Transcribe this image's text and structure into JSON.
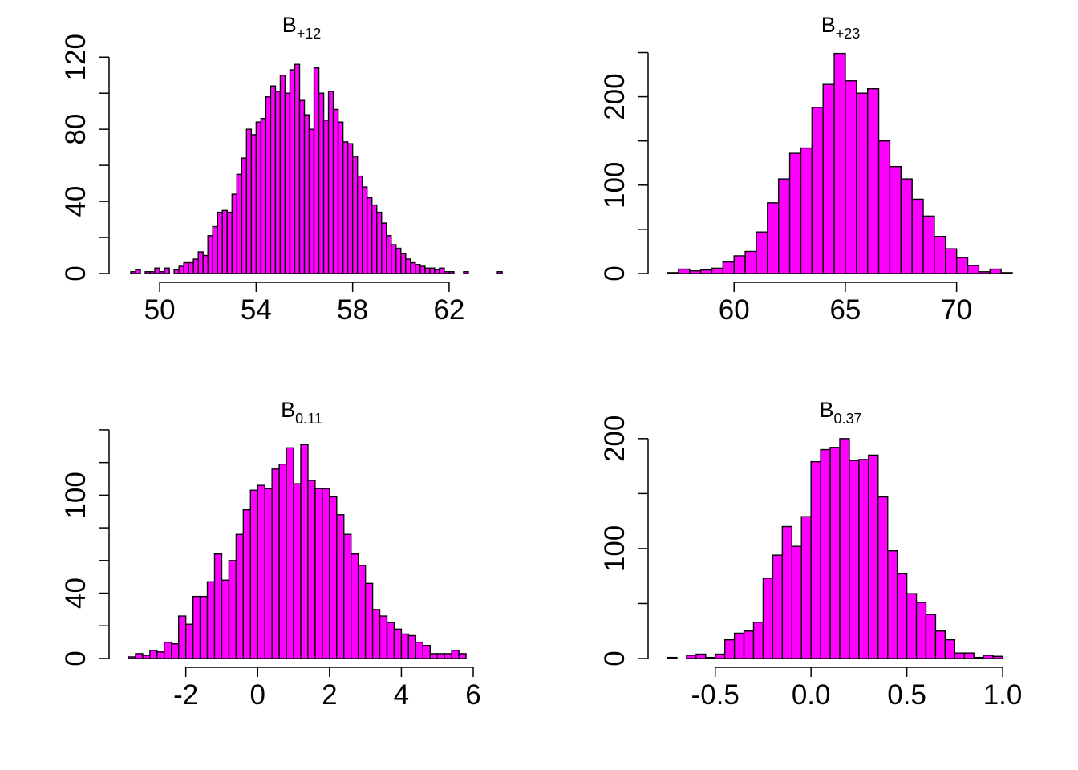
{
  "colors": {
    "bar_fill": "#ff00ff",
    "bar_stroke": "#000000",
    "background": "#ffffff"
  },
  "chart_data": [
    {
      "type": "bar",
      "title": {
        "main": "B",
        "sub": "+12"
      },
      "xlabel": "",
      "ylabel": "",
      "xlim": [
        48.7,
        63.0
      ],
      "ylim": [
        0,
        125
      ],
      "xticks": [
        50,
        54,
        58,
        62
      ],
      "xtick_labels": [
        "50",
        "54",
        "58",
        "62"
      ],
      "yticks": [
        0,
        20,
        40,
        60,
        80,
        100,
        120
      ],
      "ytick_labels": [
        "0",
        "",
        "40",
        "",
        "80",
        "",
        "120"
      ],
      "grid": false,
      "bin_start": 48.8,
      "bin_width": 0.2,
      "values": [
        1,
        2,
        0,
        1,
        1,
        3,
        1,
        3,
        0,
        2,
        4,
        6,
        6,
        8,
        12,
        10,
        21,
        26,
        34,
        35,
        34,
        44,
        55,
        64,
        80,
        77,
        84,
        86,
        98,
        104,
        101,
        110,
        100,
        113,
        116,
        96,
        88,
        80,
        114,
        100,
        85,
        101,
        91,
        84,
        73,
        72,
        65,
        54,
        48,
        42,
        38,
        34,
        28,
        21,
        16,
        14,
        11,
        8,
        6,
        5,
        4,
        3,
        3,
        2,
        3,
        1,
        1,
        0,
        0,
        1,
        0,
        0,
        0,
        0,
        0,
        0,
        1
      ]
    },
    {
      "type": "bar",
      "title": {
        "main": "B",
        "sub": "+23"
      },
      "xlabel": "",
      "ylabel": "",
      "xlim": [
        57.0,
        72.5
      ],
      "ylim": [
        0,
        255
      ],
      "xticks": [
        60,
        65,
        70
      ],
      "xtick_labels": [
        "60",
        "65",
        "70"
      ],
      "yticks": [
        0,
        50,
        100,
        150,
        200,
        250
      ],
      "ytick_labels": [
        "0",
        "",
        "100",
        "",
        "200",
        ""
      ],
      "grid": false,
      "bin_start": 57.0,
      "bin_width": 0.5,
      "values": [
        1,
        5,
        3,
        4,
        6,
        13,
        20,
        25,
        47,
        80,
        107,
        136,
        142,
        188,
        214,
        249,
        218,
        204,
        209,
        150,
        121,
        107,
        84,
        65,
        42,
        28,
        18,
        9,
        2,
        5,
        1
      ]
    },
    {
      "type": "bar",
      "title": {
        "main": "B",
        "sub": "0.11"
      },
      "xlabel": "",
      "ylabel": "",
      "xlim": [
        -3.6,
        6.0
      ],
      "ylim": [
        0,
        138
      ],
      "xticks": [
        -2,
        0,
        2,
        4,
        6
      ],
      "xtick_labels": [
        "-2",
        "0",
        "2",
        "4",
        "6"
      ],
      "yticks": [
        0,
        20,
        40,
        60,
        80,
        100,
        120,
        140
      ],
      "ytick_labels": [
        "0",
        "",
        "40",
        "",
        "",
        "100",
        "",
        ""
      ],
      "grid": false,
      "bin_start": -3.6,
      "bin_width": 0.2,
      "values": [
        1,
        3,
        2,
        5,
        4,
        10,
        9,
        26,
        21,
        38,
        38,
        47,
        64,
        48,
        60,
        76,
        91,
        103,
        106,
        104,
        116,
        119,
        129,
        107,
        131,
        109,
        104,
        104,
        99,
        88,
        76,
        64,
        57,
        46,
        30,
        26,
        22,
        18,
        15,
        14,
        10,
        8,
        3,
        3,
        3,
        5,
        3
      ]
    },
    {
      "type": "bar",
      "title": {
        "main": "B",
        "sub": "0.37"
      },
      "xlabel": "",
      "ylabel": "",
      "xlim": [
        -0.75,
        1.05
      ],
      "ylim": [
        0,
        205
      ],
      "xticks": [
        -0.5,
        0.0,
        0.5,
        1.0
      ],
      "xtick_labels": [
        "-0.5",
        "0.0",
        "0.5",
        "1.0"
      ],
      "yticks": [
        0,
        50,
        100,
        150,
        200
      ],
      "ytick_labels": [
        "0",
        "",
        "100",
        "",
        "200"
      ],
      "grid": false,
      "bin_start": -0.75,
      "bin_width": 0.05,
      "values": [
        1,
        0,
        3,
        4,
        1,
        4,
        17,
        23,
        25,
        33,
        73,
        94,
        120,
        102,
        129,
        179,
        190,
        192,
        200,
        180,
        181,
        185,
        147,
        98,
        77,
        59,
        51,
        40,
        25,
        17,
        5,
        5,
        1,
        3,
        2
      ]
    }
  ]
}
